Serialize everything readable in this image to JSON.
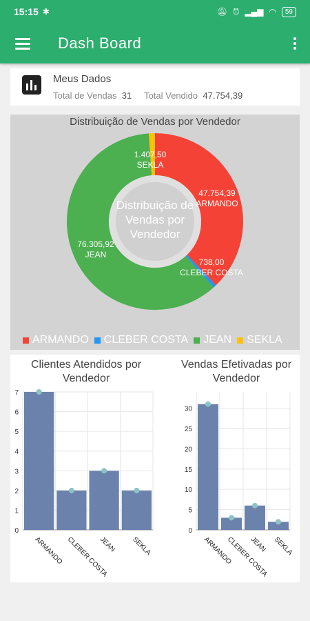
{
  "status": {
    "time": "15:15",
    "battery": "59"
  },
  "appbar": {
    "title": "Dash Board"
  },
  "my_data": {
    "heading": "Meus Dados",
    "total_vendas_label": "Total de Vendas",
    "total_vendas_value": "31",
    "total_vendido_label": "Total Vendido",
    "total_vendido_value": "47.754,39"
  },
  "colors": {
    "primary": "#2cae6f",
    "armando": "#f44336",
    "cleber": "#2196f3",
    "jean": "#4caf50",
    "sekla": "#ffc107",
    "bar": "#6b82ad",
    "marker": "#8ec3c6"
  },
  "chart_data": [
    {
      "type": "pie",
      "title": "Distribuição de Vendas por Vendedor",
      "center_text": "Distribuição de Vendas por Vendedor",
      "slices": [
        {
          "label": "ARMANDO",
          "value": 47754.39,
          "value_text": "47.754,39"
        },
        {
          "label": "CLEBER COSTA",
          "value": 738.0,
          "value_text": "738,00"
        },
        {
          "label": "JEAN",
          "value": 76305.92,
          "value_text": "76.305,92"
        },
        {
          "label": "SEKLA",
          "value": 1407.5,
          "value_text": "1.407,50"
        }
      ],
      "legend": [
        "ARMANDO",
        "CLEBER COSTA",
        "JEAN",
        "SEKLA"
      ],
      "legend_position": "bottom"
    },
    {
      "type": "bar",
      "title": "Clientes Atendidos por Vendedor",
      "categories": [
        "ARMANDO",
        "CLEBER COSTA",
        "JEAN",
        "SEKLA"
      ],
      "values": [
        7,
        2,
        3,
        2
      ],
      "ylim": [
        0,
        7
      ],
      "yticks": [
        0,
        1,
        2,
        3,
        4,
        5,
        6,
        7
      ],
      "grid": true
    },
    {
      "type": "bar",
      "title": "Vendas Efetivadas por Vendedor",
      "categories": [
        "ARMANDO",
        "CLEBER COSTA",
        "JEAN",
        "SEKLA"
      ],
      "values": [
        31,
        3,
        6,
        2
      ],
      "ylim": [
        0,
        34
      ],
      "yticks": [
        0,
        5,
        10,
        15,
        20,
        25,
        30
      ],
      "grid": true
    }
  ]
}
